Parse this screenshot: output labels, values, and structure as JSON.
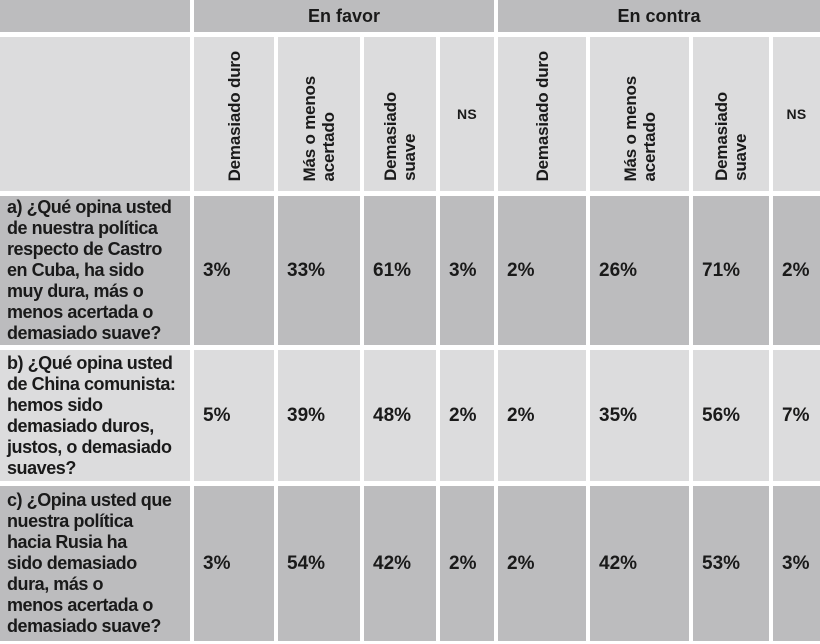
{
  "colors": {
    "dark_cell": "#bcbcbe",
    "light_cell": "#dcdcdd",
    "grid_lines": "#ffffff",
    "text": "#1a1a1a"
  },
  "table": {
    "group_headers": [
      {
        "label": "En favor"
      },
      {
        "label": "En contra"
      }
    ],
    "favor_columns": [
      "Demasiado duro",
      "Más o menos\nacertado",
      "Demasiado\nsuave",
      "NS"
    ],
    "contra_columns": [
      "Demasiado duro",
      "Más o menos\nacertado",
      "Demasiado\nsuave",
      "NS"
    ],
    "rows": [
      {
        "question": "a) ¿Qué opina usted\nde nuestra política\nrespecto de Castro\nen Cuba, ha sido\nmuy dura, más o\nmenos acertada o\ndemasiado suave?",
        "values": [
          "3%",
          "33%",
          "61%",
          "3%",
          "2%",
          "26%",
          "71%",
          "2%"
        ]
      },
      {
        "question": "b) ¿Qué opina usted\nde China comunista:\nhemos sido\ndemasiado duros,\njustos, o demasiado\nsuaves?",
        "values": [
          "5%",
          "39%",
          "48%",
          "2%",
          "2%",
          "35%",
          "56%",
          "7%"
        ]
      },
      {
        "question": "c) ¿Opina usted que\nnuestra política\nhacia Rusia ha\nsido demasiado\ndura, más o\nmenos acertada o\ndemasiado suave?",
        "values": [
          "3%",
          "54%",
          "42%",
          "2%",
          "2%",
          "42%",
          "53%",
          "3%"
        ]
      }
    ]
  }
}
